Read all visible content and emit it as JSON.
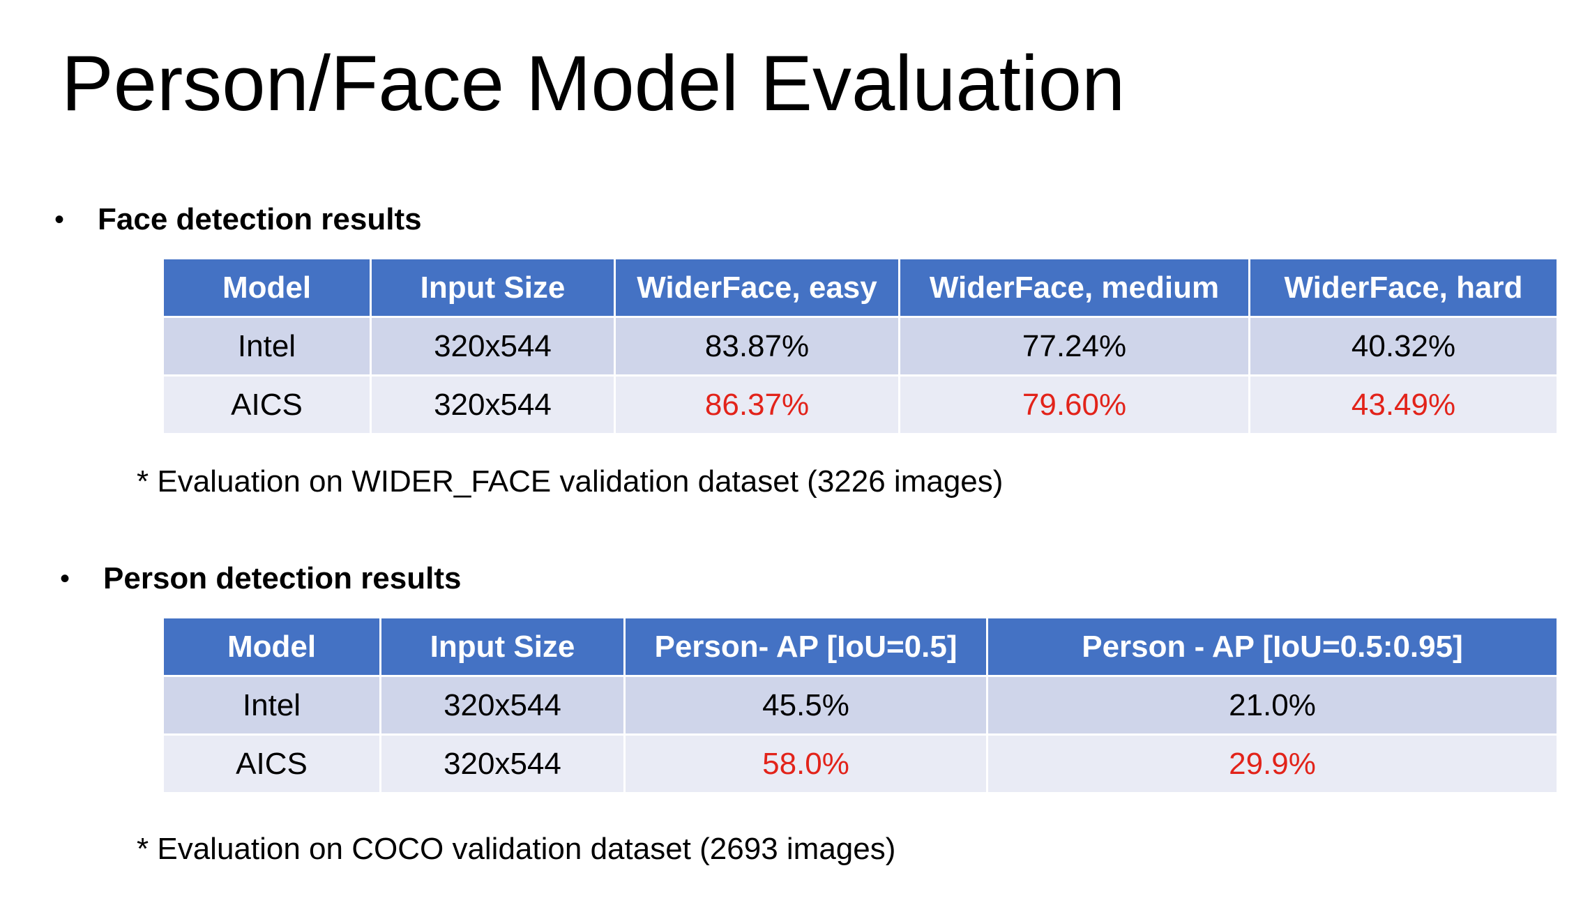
{
  "slide": {
    "title": "Person/Face Model Evaluation"
  },
  "face_section": {
    "bullet": "•",
    "heading": "Face detection results",
    "columns": [
      "Model",
      "Input Size",
      "WiderFace, easy",
      "WiderFace, medium",
      "WiderFace, hard"
    ],
    "rows": [
      [
        "Intel",
        "320x544",
        "83.87%",
        "77.24%",
        "40.32%"
      ],
      [
        "AICS",
        "320x544",
        "86.37%",
        "79.60%",
        "43.49%"
      ]
    ],
    "footnote": "* Evaluation on WIDER_FACE validation dataset (3226 images)"
  },
  "person_section": {
    "bullet": "•",
    "heading": "Person detection results",
    "columns": [
      "Model",
      "Input Size",
      "Person- AP [IoU=0.5]",
      "Person - AP [IoU=0.5:0.95]"
    ],
    "rows": [
      [
        "Intel",
        "320x544",
        "45.5%",
        "21.0%"
      ],
      [
        "AICS",
        "320x544",
        "58.0%",
        "29.9%"
      ]
    ],
    "footnote": "* Evaluation on COCO validation dataset (2693 images)"
  },
  "colors": {
    "header_background": "#4472c4",
    "row_odd_background": "#cfd5ea",
    "row_even_background": "#e9ebf5",
    "highlight_text": "#e2231a"
  }
}
